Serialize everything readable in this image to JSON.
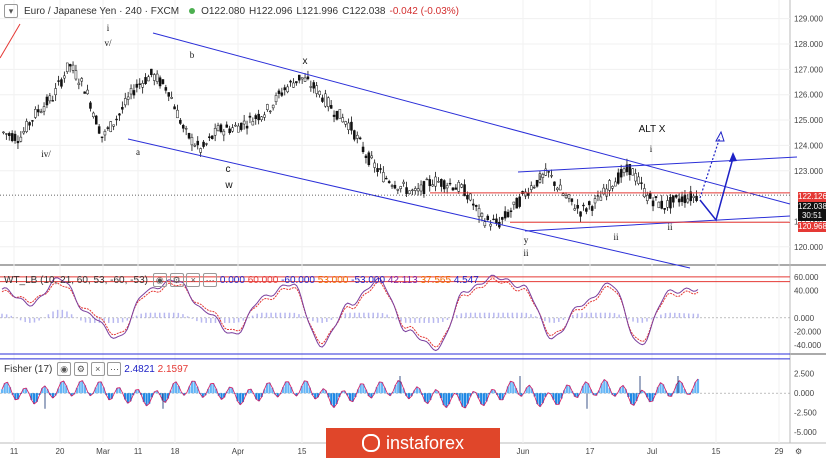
{
  "header": {
    "symbol": "Euro / Japanese Yen · 240 · FXCM",
    "open": "O122.080",
    "high": "H122.096",
    "low": "L121.996",
    "close": "C122.038",
    "change": "-0.042 (-0.03%)"
  },
  "wt_legend": {
    "name": "WT_LB (10, 21, 60, 53, -60, -53)",
    "v1": "0.000",
    "v2": "60.000",
    "v3": "-60.000",
    "v4": "53.000",
    "v5": "-53.000",
    "v6": "42.113",
    "v7": "37.565",
    "v8": "4.547"
  },
  "fisher_legend": {
    "name": "Fisher (17)",
    "v1": "2.4821",
    "v2": "2.1597"
  },
  "badges": {
    "upper": "122.126",
    "current": "122.038",
    "timer": "30:51",
    "lower": "120.968"
  },
  "watermark": "instaforex",
  "colors": {
    "candle": "#111111",
    "channel": "#2b2fd8",
    "resistance": "#e53935",
    "wt_line1": "#7b3f9e",
    "wt_line2": "#e53935",
    "wt_hist": "#b8b8f0",
    "fisher_pos": "#64b5f6",
    "fisher_neg": "#1e88e5",
    "fisher_line": "#d81b60",
    "projection": "#1e22c6"
  },
  "chart_data": [
    {
      "type": "candlestick",
      "title": "Euro / Japanese Yen · 240 · FXCM",
      "ylim": [
        119.4,
        129.5
      ],
      "yticks": [
        "129.000",
        "128.000",
        "127.000",
        "126.000",
        "125.000",
        "124.000",
        "123.000",
        "121.000",
        "120.000"
      ],
      "xticks": [
        "11",
        "20",
        "Mar",
        "11",
        "18",
        "Apr",
        "15",
        "Jun",
        "17",
        "Jul",
        "15",
        "29"
      ],
      "price_path": [
        [
          "Feb-11",
          124.5
        ],
        [
          "Feb-15",
          124.3
        ],
        [
          "Feb-20",
          125.3
        ],
        [
          "Feb-26",
          125.9
        ],
        [
          "Mar-01",
          127.2
        ],
        [
          "Mar-05",
          126.2
        ],
        [
          "Mar-08",
          124.3
        ],
        [
          "Mar-12",
          125.2
        ],
        [
          "Mar-15",
          126.3
        ],
        [
          "Mar-19",
          126.8
        ],
        [
          "Mar-22",
          126.2
        ],
        [
          "Mar-26",
          124.5
        ],
        [
          "Mar-29",
          123.8
        ],
        [
          "Apr-02",
          124.6
        ],
        [
          "Apr-05",
          124.7
        ],
        [
          "Apr-09",
          125.0
        ],
        [
          "Apr-12",
          125.4
        ],
        [
          "Apr-16",
          126.2
        ],
        [
          "Apr-19",
          126.7
        ],
        [
          "Apr-23",
          126.2
        ],
        [
          "Apr-26",
          125.4
        ],
        [
          "May-01",
          124.8
        ],
        [
          "May-06",
          123.6
        ],
        [
          "May-10",
          122.8
        ],
        [
          "May-14",
          122.4
        ],
        [
          "May-17",
          122.1
        ],
        [
          "May-21",
          122.6
        ],
        [
          "May-24",
          122.5
        ],
        [
          "May-28",
          122.2
        ],
        [
          "May-31",
          121.1
        ],
        [
          "Jun-03",
          120.9
        ],
        [
          "Jun-06",
          121.6
        ],
        [
          "Jun-10",
          122.4
        ],
        [
          "Jun-13",
          122.9
        ],
        [
          "Jun-17",
          122.0
        ],
        [
          "Jun-21",
          121.4
        ],
        [
          "Jun-25",
          121.8
        ],
        [
          "Jun-28",
          122.6
        ],
        [
          "Jul-01",
          123.1
        ],
        [
          "Jul-03",
          122.0
        ],
        [
          "Jul-05",
          121.6
        ],
        [
          "Jul-08",
          121.9
        ],
        [
          "Jul-10",
          122.0
        ]
      ],
      "annotations": [
        "i",
        "v/",
        "b",
        "x",
        "iv/",
        "a",
        "c",
        "w",
        "ALT X",
        "i",
        "i",
        "y",
        "ii",
        "ii",
        "ii"
      ],
      "levels": [
        122.126,
        120.968
      ]
    },
    {
      "type": "line",
      "title": "WT_LB (10, 21, 60, 53, -60, -53)",
      "ylim": [
        -50,
        70
      ],
      "yticks": [
        "60.000",
        "40.000",
        "0.000",
        "-20.000",
        "-40.000"
      ],
      "reference_lines": [
        60,
        53,
        -53,
        -60
      ],
      "series": [
        {
          "name": "42.113",
          "values": [
            42,
            20,
            58,
            5,
            -30,
            40,
            55,
            10,
            -25,
            30,
            50,
            -40,
            20,
            55,
            -20,
            -45,
            40,
            60,
            45,
            -30,
            20,
            50,
            -40,
            38,
            42
          ]
        },
        {
          "name": "37.565",
          "values": [
            38,
            25,
            50,
            10,
            -25,
            35,
            50,
            15,
            -20,
            25,
            45,
            -35,
            15,
            50,
            -15,
            -40,
            35,
            55,
            40,
            -25,
            15,
            45,
            -35,
            33,
            38
          ]
        }
      ]
    },
    {
      "type": "area",
      "title": "Fisher (17)",
      "ylim": [
        -6,
        4
      ],
      "yticks": [
        "2.500",
        "0.000",
        "-2.500",
        "-5.000"
      ],
      "series": [
        {
          "name": "2.4821",
          "values": [
            1.5,
            -1.2,
            1.8,
            2.0,
            -0.8,
            -2.0,
            2.2,
            1.0,
            -1.5,
            1.5,
            2.0,
            -2.5,
            1.0,
            2.1,
            -1.0,
            -3.0,
            -1.8,
            2.0,
            -2.8,
            1.2,
            2.3,
            -2.0,
            1.5,
            2.48
          ]
        },
        {
          "name": "2.1597",
          "values": [
            1.3,
            -1.0,
            1.6,
            1.9,
            -0.6,
            -1.8,
            2.0,
            0.9,
            -1.3,
            1.3,
            1.9,
            -2.3,
            0.9,
            2.0,
            -0.9,
            -2.8,
            -1.6,
            1.9,
            -2.6,
            1.1,
            2.1,
            -1.8,
            1.3,
            2.16
          ]
        }
      ]
    }
  ]
}
